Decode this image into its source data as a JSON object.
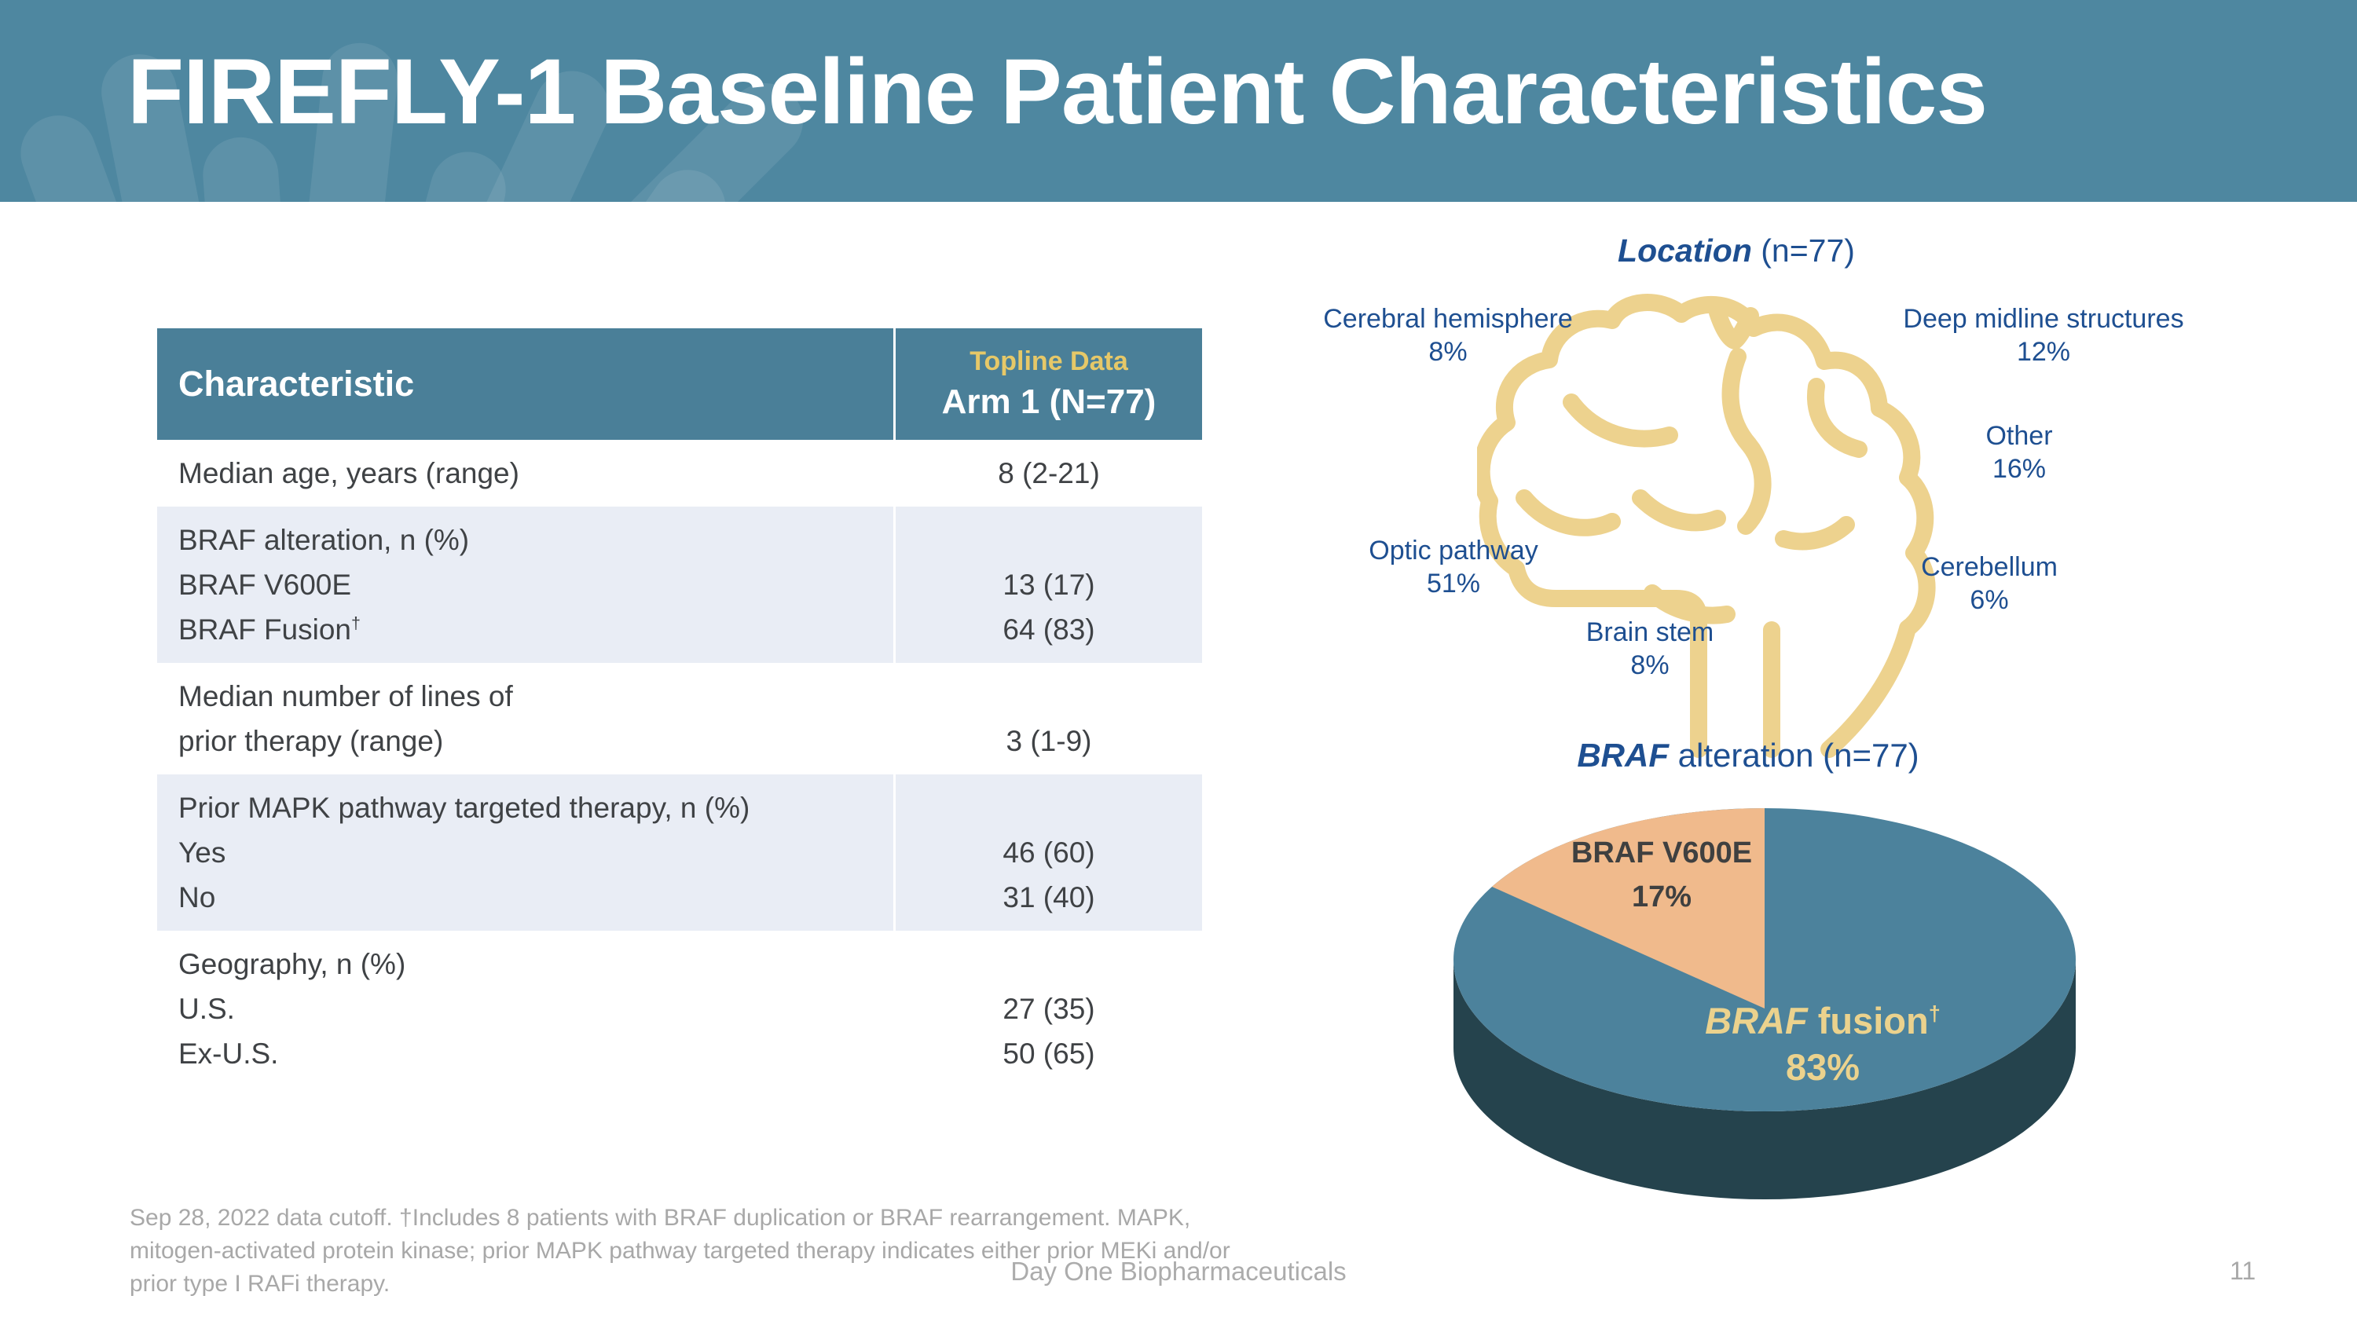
{
  "slide": {
    "title": "FIREFLY-1 Baseline Patient Characteristics",
    "footer_brand": "Day One Biopharmaceuticals",
    "page_number": "11",
    "footnote_lines": [
      "Sep 28, 2022 data cutoff. †Includes 8 patients with BRAF duplication or BRAF rearrangement.  MAPK,",
      "mitogen-activated protein kinase; prior MAPK pathway targeted therapy indicates either prior MEKi and/or",
      "prior type I RAFi therapy."
    ],
    "colors": {
      "band_teal": "#4E87A0",
      "table_header_teal": "#4A7F98",
      "shaded_row": "#E9EDF5",
      "accent_gold": "#E6C868",
      "brain_gold": "#EDD28E",
      "label_blue": "#1E4F91",
      "body_text": "#3F4245",
      "footnote_gray": "#A8A8A8"
    }
  },
  "table": {
    "header": {
      "col1": "Characteristic",
      "col2_top": "Topline Data",
      "col2_bottom": "Arm 1 (N=77)"
    },
    "rows": [
      {
        "shaded": false,
        "label_lines": [
          "Median age, years (range)"
        ],
        "value_lines": [
          "8 (2-21)"
        ]
      },
      {
        "shaded": true,
        "label_lines": [
          "BRAF alteration, n (%)",
          "BRAF V600E",
          "BRAF Fusion^†"
        ],
        "value_lines": [
          "",
          "13 (17)",
          "64 (83)"
        ]
      },
      {
        "shaded": false,
        "label_lines": [
          "Median number of lines of",
          "prior therapy (range)"
        ],
        "value_lines": [
          "",
          "3 (1-9)"
        ]
      },
      {
        "shaded": true,
        "label_lines": [
          "Prior MAPK pathway targeted therapy, n (%)",
          "Yes",
          "No"
        ],
        "value_lines": [
          "",
          "46 (60)",
          "31 (40)"
        ]
      },
      {
        "shaded": false,
        "label_lines": [
          "Geography, n (%)",
          "U.S.",
          "Ex-U.S."
        ],
        "value_lines": [
          "",
          "27 (35)",
          "50 (65)"
        ]
      }
    ]
  },
  "location_diagram": {
    "title_em": "Location",
    "title_rest": " (n=77)",
    "labels": [
      {
        "id": "cerebral",
        "name": "Cerebral hemisphere",
        "pct": "8%"
      },
      {
        "id": "deep",
        "name": "Deep midline structures",
        "pct": "12%"
      },
      {
        "id": "other",
        "name": "Other",
        "pct": "16%"
      },
      {
        "id": "optic",
        "name": "Optic pathway",
        "pct": "51%"
      },
      {
        "id": "brainstem",
        "name": "Brain stem",
        "pct": "8%"
      },
      {
        "id": "cerebellum",
        "name": "Cerebellum",
        "pct": "6%"
      }
    ]
  },
  "pie": {
    "title_em": "BRAF",
    "title_rest": " alteration (n=77)",
    "labels": {
      "v600e": {
        "name": "BRAF V600E",
        "pct": "17%"
      },
      "fusion": {
        "em": "BRAF",
        "rest": " fusion",
        "sup": "†",
        "pct": "83%"
      }
    }
  },
  "chart_data": [
    {
      "type": "pie",
      "title": "BRAF alteration (n=77)",
      "style": "3d",
      "start": "top",
      "small_slice_direction": "counterclockwise",
      "depth_color": "#25434D",
      "slices": [
        {
          "label": "BRAF fusion†",
          "value": 83,
          "color": "#4C829C"
        },
        {
          "label": "BRAF V600E",
          "value": 17,
          "color": "#F0BA8C"
        }
      ]
    },
    {
      "type": "diagram-distribution",
      "title": "Location (n=77)",
      "categories": [
        "Cerebral hemisphere",
        "Deep midline structures",
        "Other",
        "Optic pathway",
        "Brain stem",
        "Cerebellum"
      ],
      "values": [
        8,
        12,
        16,
        51,
        8,
        6
      ]
    }
  ]
}
